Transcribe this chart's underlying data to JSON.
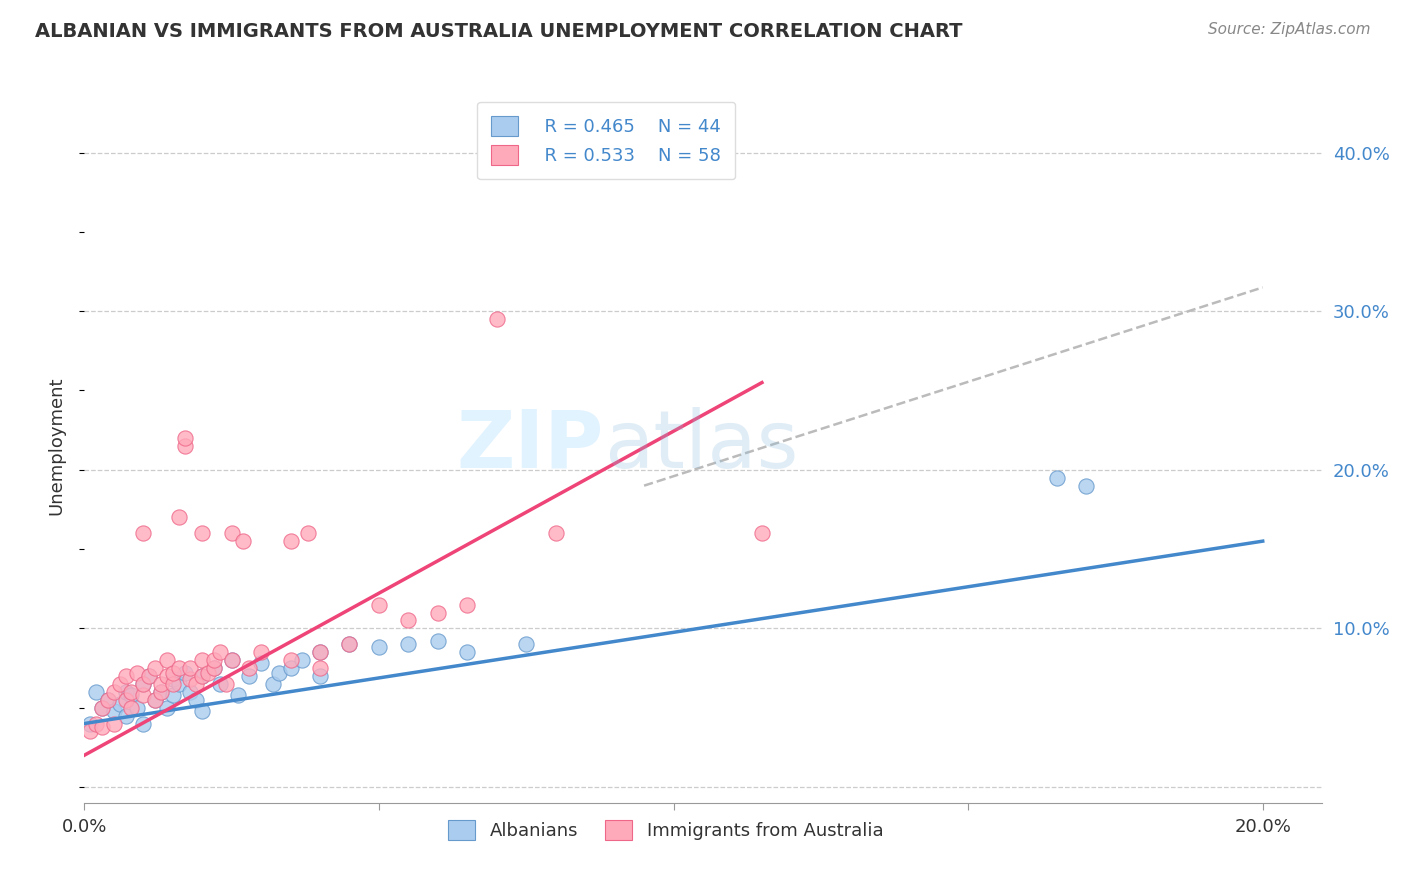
{
  "title": "ALBANIAN VS IMMIGRANTS FROM AUSTRALIA UNEMPLOYMENT CORRELATION CHART",
  "source": "Source: ZipAtlas.com",
  "ylabel": "Unemployment",
  "xlim": [
    0.0,
    0.21
  ],
  "ylim": [
    -0.01,
    0.44
  ],
  "xtick_positions": [
    0.0,
    0.05,
    0.1,
    0.15,
    0.2
  ],
  "xtick_labels": [
    "0.0%",
    "",
    "",
    "",
    "20.0%"
  ],
  "ytick_positions": [
    0.0,
    0.1,
    0.2,
    0.3,
    0.4
  ],
  "ytick_right_labels": [
    "",
    "10.0%",
    "20.0%",
    "30.0%",
    "40.0%"
  ],
  "grid_color": "#cccccc",
  "background_color": "#ffffff",
  "watermark_zip": "ZIP",
  "watermark_atlas": "atlas",
  "blue_color": "#aaccee",
  "blue_edge": "#6699cc",
  "pink_color": "#ffaabb",
  "pink_edge": "#ee6688",
  "trend_blue_color": "#4488cc",
  "trend_pink_color": "#ee4477",
  "dashed_color": "#bbbbbb",
  "text_color": "#333333",
  "blue_label": "Albanians",
  "pink_label": "Immigrants from Australia",
  "legend_r_blue": "R = 0.465",
  "legend_n_blue": "N = 44",
  "legend_r_pink": "R = 0.533",
  "legend_n_pink": "N = 58",
  "legend_text_color": "#4488cc",
  "right_axis_color": "#4488cc",
  "blue_trend_x": [
    0.0,
    0.2
  ],
  "blue_trend_y": [
    0.04,
    0.155
  ],
  "pink_trend_x": [
    0.0,
    0.115
  ],
  "pink_trend_y": [
    0.02,
    0.255
  ],
  "dashed_trend_x": [
    0.095,
    0.2
  ],
  "dashed_trend_y": [
    0.19,
    0.315
  ],
  "blue_scatter": [
    [
      0.001,
      0.04
    ],
    [
      0.002,
      0.06
    ],
    [
      0.003,
      0.05
    ],
    [
      0.004,
      0.055
    ],
    [
      0.005,
      0.048
    ],
    [
      0.006,
      0.052
    ],
    [
      0.007,
      0.06
    ],
    [
      0.007,
      0.045
    ],
    [
      0.008,
      0.058
    ],
    [
      0.009,
      0.05
    ],
    [
      0.01,
      0.065
    ],
    [
      0.01,
      0.04
    ],
    [
      0.011,
      0.07
    ],
    [
      0.012,
      0.055
    ],
    [
      0.013,
      0.06
    ],
    [
      0.014,
      0.05
    ],
    [
      0.015,
      0.068
    ],
    [
      0.015,
      0.058
    ],
    [
      0.016,
      0.065
    ],
    [
      0.017,
      0.072
    ],
    [
      0.018,
      0.06
    ],
    [
      0.019,
      0.055
    ],
    [
      0.02,
      0.07
    ],
    [
      0.02,
      0.048
    ],
    [
      0.022,
      0.075
    ],
    [
      0.023,
      0.065
    ],
    [
      0.025,
      0.08
    ],
    [
      0.026,
      0.058
    ],
    [
      0.028,
      0.07
    ],
    [
      0.03,
      0.078
    ],
    [
      0.032,
      0.065
    ],
    [
      0.033,
      0.072
    ],
    [
      0.035,
      0.075
    ],
    [
      0.037,
      0.08
    ],
    [
      0.04,
      0.085
    ],
    [
      0.04,
      0.07
    ],
    [
      0.045,
      0.09
    ],
    [
      0.05,
      0.088
    ],
    [
      0.055,
      0.09
    ],
    [
      0.06,
      0.092
    ],
    [
      0.065,
      0.085
    ],
    [
      0.075,
      0.09
    ],
    [
      0.165,
      0.195
    ],
    [
      0.17,
      0.19
    ]
  ],
  "pink_scatter": [
    [
      0.001,
      0.035
    ],
    [
      0.002,
      0.04
    ],
    [
      0.003,
      0.05
    ],
    [
      0.003,
      0.038
    ],
    [
      0.004,
      0.055
    ],
    [
      0.005,
      0.06
    ],
    [
      0.005,
      0.04
    ],
    [
      0.006,
      0.065
    ],
    [
      0.007,
      0.055
    ],
    [
      0.007,
      0.07
    ],
    [
      0.008,
      0.06
    ],
    [
      0.008,
      0.05
    ],
    [
      0.009,
      0.072
    ],
    [
      0.01,
      0.058
    ],
    [
      0.01,
      0.065
    ],
    [
      0.01,
      0.16
    ],
    [
      0.011,
      0.07
    ],
    [
      0.012,
      0.055
    ],
    [
      0.012,
      0.075
    ],
    [
      0.013,
      0.06
    ],
    [
      0.013,
      0.065
    ],
    [
      0.014,
      0.07
    ],
    [
      0.014,
      0.08
    ],
    [
      0.015,
      0.065
    ],
    [
      0.015,
      0.072
    ],
    [
      0.016,
      0.075
    ],
    [
      0.016,
      0.17
    ],
    [
      0.017,
      0.215
    ],
    [
      0.017,
      0.22
    ],
    [
      0.018,
      0.068
    ],
    [
      0.018,
      0.075
    ],
    [
      0.019,
      0.065
    ],
    [
      0.02,
      0.07
    ],
    [
      0.02,
      0.08
    ],
    [
      0.02,
      0.16
    ],
    [
      0.021,
      0.072
    ],
    [
      0.022,
      0.075
    ],
    [
      0.022,
      0.08
    ],
    [
      0.023,
      0.085
    ],
    [
      0.024,
      0.065
    ],
    [
      0.025,
      0.08
    ],
    [
      0.025,
      0.16
    ],
    [
      0.027,
      0.155
    ],
    [
      0.028,
      0.075
    ],
    [
      0.03,
      0.085
    ],
    [
      0.035,
      0.155
    ],
    [
      0.035,
      0.08
    ],
    [
      0.038,
      0.16
    ],
    [
      0.04,
      0.075
    ],
    [
      0.04,
      0.085
    ],
    [
      0.045,
      0.09
    ],
    [
      0.05,
      0.115
    ],
    [
      0.055,
      0.105
    ],
    [
      0.06,
      0.11
    ],
    [
      0.065,
      0.115
    ],
    [
      0.07,
      0.295
    ],
    [
      0.08,
      0.16
    ],
    [
      0.115,
      0.16
    ]
  ]
}
